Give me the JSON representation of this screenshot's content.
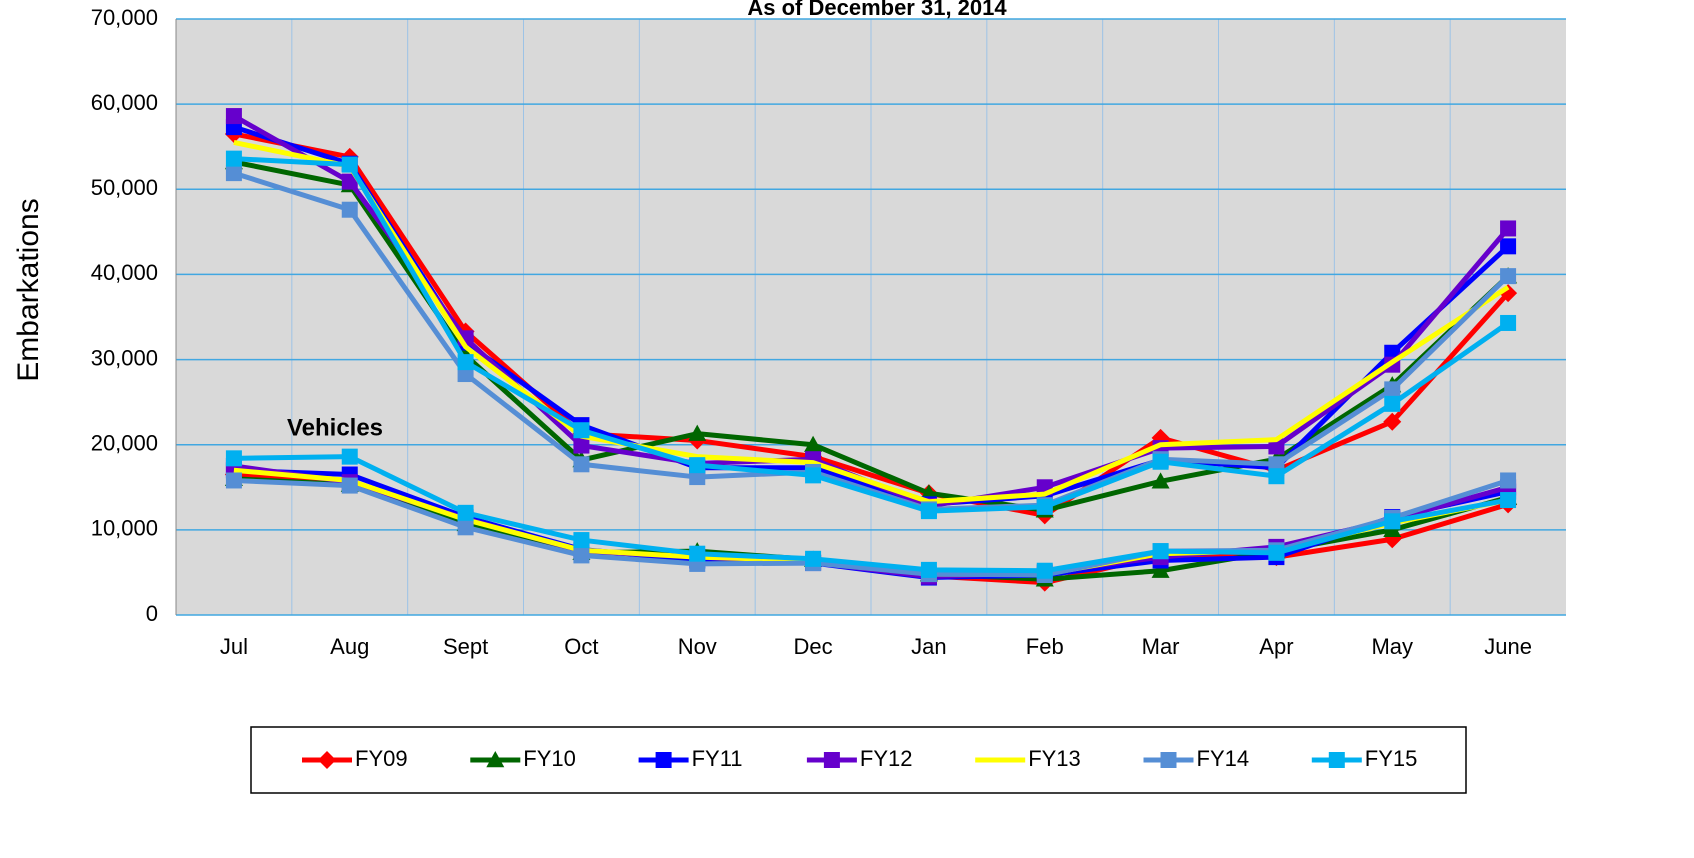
{
  "chart_data": {
    "type": "line",
    "title": "As of December 31, 2014",
    "y_label": "Embarkations",
    "annotation": "Vehicles",
    "categories": [
      "Jul",
      "Aug",
      "Sept",
      "Oct",
      "Nov",
      "Dec",
      "Jan",
      "Feb",
      "Mar",
      "Apr",
      "May",
      "June"
    ],
    "ylim": [
      0,
      70000
    ],
    "yticks": [
      {
        "value": 0,
        "label": "0"
      },
      {
        "value": 10000,
        "label": "10,000"
      },
      {
        "value": 20000,
        "label": "20,000"
      },
      {
        "value": 30000,
        "label": "30,000"
      },
      {
        "value": 40000,
        "label": "40,000"
      },
      {
        "value": 50000,
        "label": "50,000"
      },
      {
        "value": 60000,
        "label": "60,000"
      },
      {
        "value": 70000,
        "label": "70,000"
      }
    ],
    "grid": true,
    "series": [
      {
        "name": "FY09",
        "color": "#ff0000",
        "marker": "diamond",
        "values": [
          56500,
          53800,
          33300,
          21300,
          20500,
          18600,
          14300,
          11700,
          20800,
          17000,
          22700,
          37800
        ],
        "vehicle_values": [
          16500,
          15700,
          11000,
          7600,
          6600,
          6300,
          4600,
          3800,
          7000,
          6800,
          8900,
          13000
        ]
      },
      {
        "name": "FY10",
        "color": "#006600",
        "marker": "triangle",
        "values": [
          53200,
          50500,
          30500,
          18200,
          21300,
          20000,
          14300,
          12300,
          15700,
          18300,
          27000,
          39800
        ],
        "vehicle_values": [
          16000,
          15300,
          10700,
          7300,
          7500,
          6500,
          4800,
          4200,
          5200,
          7500,
          10000,
          13800
        ]
      },
      {
        "name": "FY11",
        "color": "#0000ff",
        "marker": "square",
        "values": [
          57300,
          53000,
          32000,
          22300,
          17300,
          17300,
          13000,
          14000,
          18200,
          17300,
          30800,
          43300
        ],
        "vehicle_values": [
          17000,
          16500,
          11500,
          7700,
          6400,
          6100,
          4400,
          4700,
          6400,
          6800,
          11500,
          14500
        ]
      },
      {
        "name": "FY12",
        "color": "#6600cc",
        "marker": "square",
        "values": [
          58600,
          50900,
          32500,
          19900,
          17800,
          18300,
          12800,
          15000,
          19600,
          19800,
          29400,
          45400
        ],
        "vehicle_values": [
          17500,
          15600,
          11300,
          7500,
          6800,
          6200,
          4500,
          5000,
          6800,
          8000,
          11200,
          15000
        ]
      },
      {
        "name": "FY13",
        "color": "#ffff00",
        "marker": "none",
        "values": [
          55500,
          52700,
          31500,
          21000,
          18600,
          17900,
          13300,
          14200,
          20000,
          20600,
          29700,
          38500
        ],
        "vehicle_values": [
          17000,
          15800,
          11200,
          7600,
          6800,
          6400,
          4800,
          4800,
          7200,
          7600,
          10800,
          13500
        ]
      },
      {
        "name": "FY14",
        "color": "#558ed5",
        "marker": "square",
        "values": [
          51900,
          47600,
          28300,
          17700,
          16200,
          16800,
          12400,
          12900,
          18300,
          17700,
          26500,
          39800
        ],
        "vehicle_values": [
          15800,
          15200,
          10300,
          7000,
          6000,
          6100,
          4800,
          4700,
          7500,
          7600,
          11400,
          15800
        ]
      },
      {
        "name": "FY15",
        "color": "#00b0f0",
        "marker": "square",
        "values": [
          53600,
          52900,
          29700,
          21700,
          17600,
          16400,
          12200,
          12700,
          18000,
          16300,
          24800,
          34300
        ],
        "vehicle_values": [
          18400,
          18600,
          12000,
          8800,
          7200,
          6600,
          5300,
          5200,
          7500,
          7300,
          11000,
          13500
        ]
      }
    ]
  }
}
